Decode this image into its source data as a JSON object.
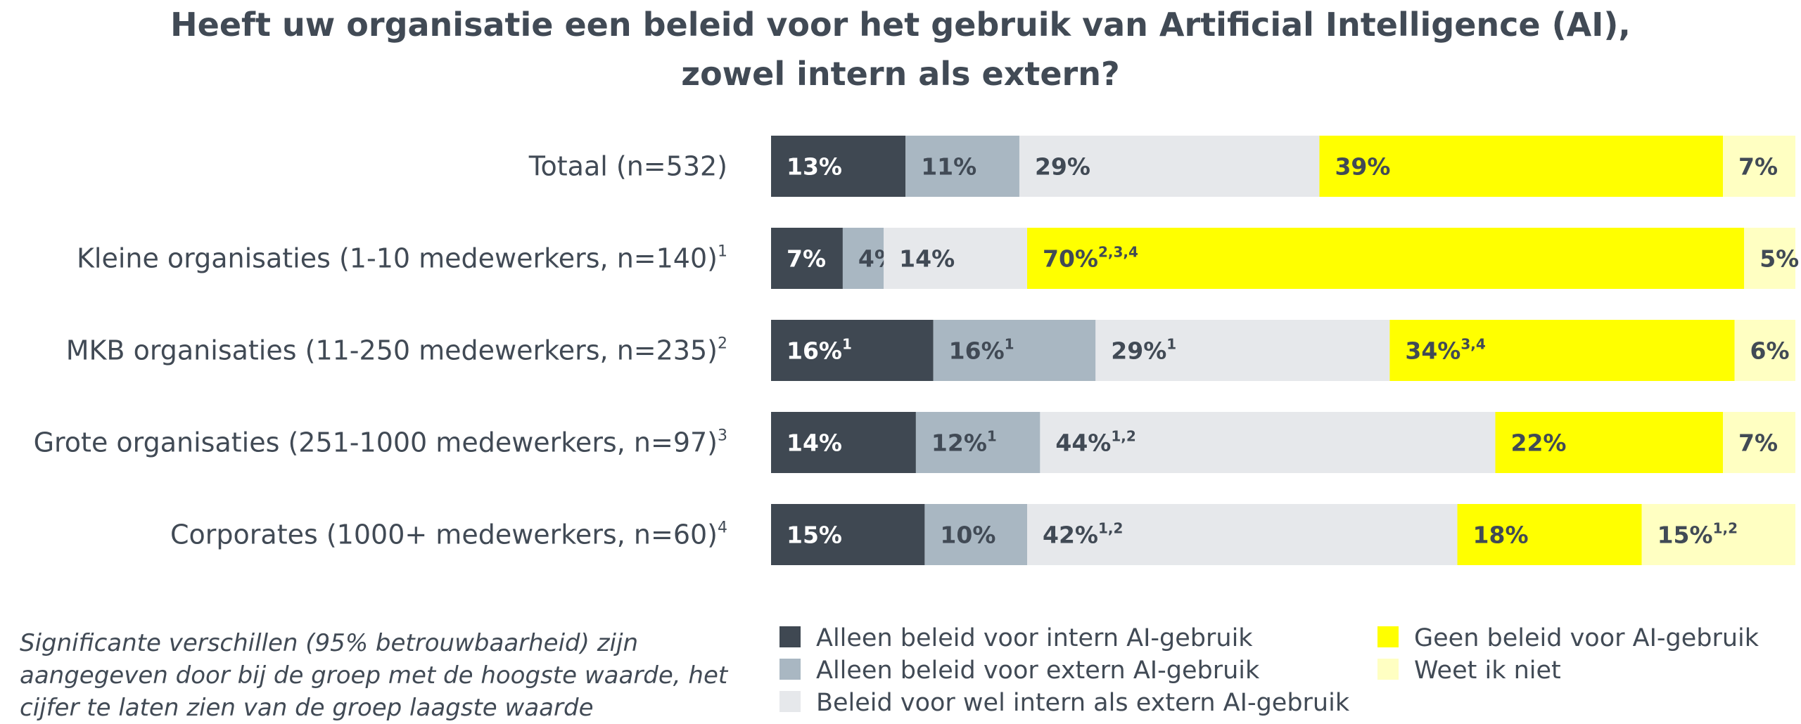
{
  "chart_data": {
    "type": "bar",
    "orientation": "horizontal",
    "stacked": true,
    "title": "Heeft uw organisatie een beleid voor het gebruik van Artificial Intelligence (AI), zowel intern als extern?",
    "title_lines": [
      "Heeft uw organisatie een beleid voor het gebruik van Artificial Intelligence (AI),",
      "zowel intern als extern?"
    ],
    "categories": [
      {
        "label": "Totaal (n=532)",
        "sup": ""
      },
      {
        "label": "Kleine organisaties (1-10 medewerkers, n=140)",
        "sup": "1"
      },
      {
        "label": "MKB organisaties (11-250 medewerkers, n=235)",
        "sup": "2"
      },
      {
        "label": "Grote organisaties (251-1000 medewerkers, n=97)",
        "sup": "3"
      },
      {
        "label": "Corporates (1000+ medewerkers, n=60)",
        "sup": "4"
      }
    ],
    "series": [
      {
        "name": "Alleen beleid voor intern AI-gebruik",
        "color": "#3f4852",
        "text_color": "#ffffff",
        "values": [
          13,
          7,
          16,
          14,
          15
        ],
        "sups": [
          "",
          "",
          "1",
          "",
          ""
        ]
      },
      {
        "name": "Alleen beleid voor extern AI-gebruik",
        "color": "#a9b7c2",
        "text_color": "#414a55",
        "values": [
          11,
          4,
          16,
          12,
          10
        ],
        "sups": [
          "",
          "",
          "1",
          "1",
          ""
        ]
      },
      {
        "name": "Beleid voor wel intern als extern AI-gebruik",
        "color": "#e6e8eb",
        "text_color": "#414a55",
        "values": [
          29,
          14,
          29,
          44,
          42
        ],
        "sups": [
          "",
          "",
          "1",
          "1,2",
          "1,2"
        ]
      },
      {
        "name": "Geen beleid voor AI-gebruik",
        "color": "#ffff00",
        "text_color": "#414a55",
        "values": [
          39,
          70,
          34,
          22,
          18
        ],
        "sups": [
          "",
          "2,3,4",
          "3,4",
          "",
          ""
        ]
      },
      {
        "name": "Weet ik niet",
        "color": "#ffffc2",
        "text_color": "#414a55",
        "values": [
          7,
          5,
          6,
          7,
          15
        ],
        "sups": [
          "",
          "",
          "",
          "",
          "1,2"
        ]
      }
    ],
    "value_suffix": "%",
    "legend_position": "bottom",
    "grid": false
  },
  "note": "Significante verschillen (95% betrouwbaarheid) zijn aangegeven door bij de groep met de hoogste waarde, het cijfer te laten zien van de groep laagste waarde"
}
